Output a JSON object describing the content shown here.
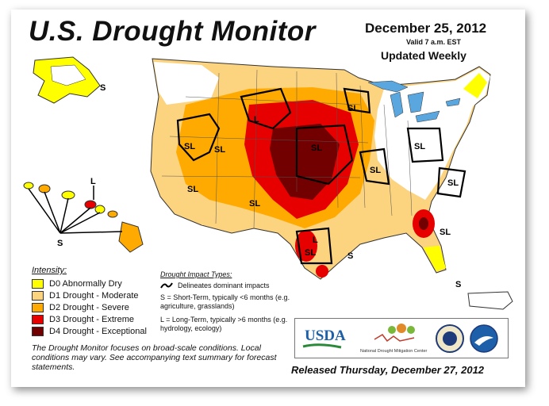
{
  "header": {
    "title": "U.S. Drought Monitor",
    "date": "December 25, 2012",
    "valid": "Valid 7 a.m. EST",
    "updated": "Updated Weekly"
  },
  "legend": {
    "title": "Intensity:",
    "items": [
      {
        "label": "D0 Abnormally Dry",
        "color": "#ffff00"
      },
      {
        "label": "D1 Drought - Moderate",
        "color": "#fcd37f"
      },
      {
        "label": "D2 Drought - Severe",
        "color": "#ffaa00"
      },
      {
        "label": "D3 Drought - Extreme",
        "color": "#e60000"
      },
      {
        "label": "D4 Drought - Exceptional",
        "color": "#730000"
      }
    ]
  },
  "impact": {
    "title": "Drought Impact Types:",
    "line": "Delineates dominant impacts",
    "short": "S = Short-Term, typically <6 months (e.g. agriculture, grasslands)",
    "long": "L = Long-Term, typically >6 months (e.g. hydrology, ecology)"
  },
  "footnote": "The Drought Monitor focuses on broad-scale conditions. Local conditions may vary. See accompanying text summary for forecast statements.",
  "released": "Released Thursday, December 27, 2012",
  "logos": {
    "usda": "USDA",
    "ndmc": "National Drought Mitigation Center"
  },
  "map_labels": {
    "sl": "SL",
    "s": "S",
    "l": "L"
  },
  "colors": {
    "water": "#5aa7e0",
    "land": "#ffffff",
    "outline": "#333333"
  }
}
